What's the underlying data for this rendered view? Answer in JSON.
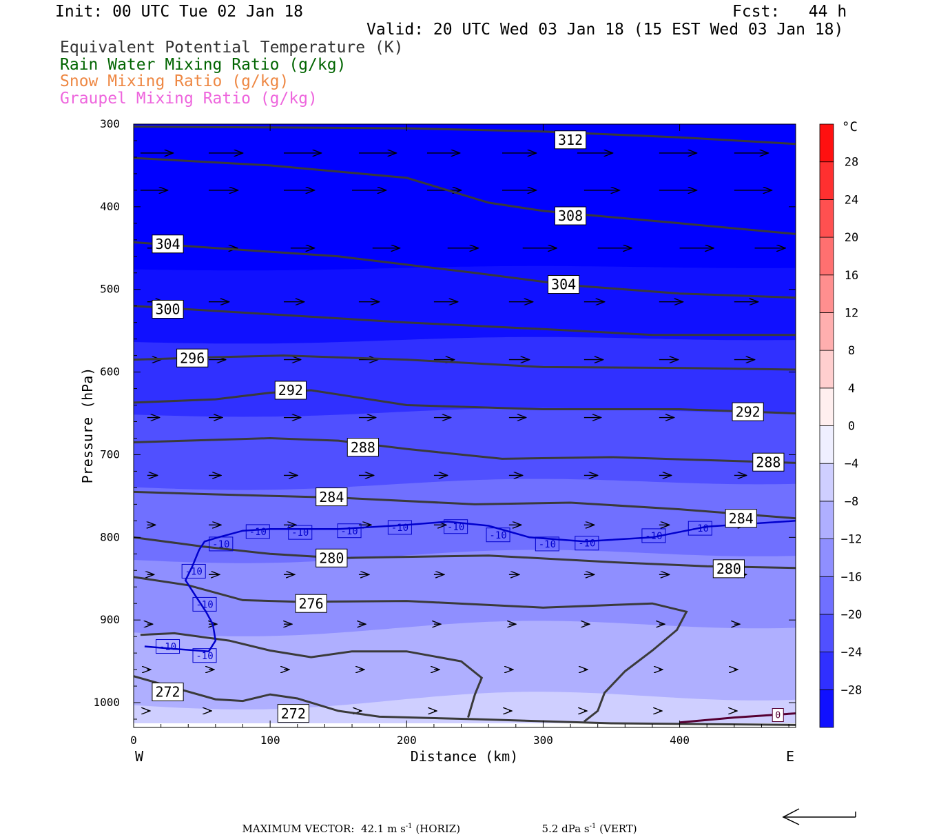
{
  "header": {
    "init": "Init: 00 UTC Tue 02 Jan 18",
    "fcst": "Fcst:   44 h",
    "valid": "Valid: 20 UTC Wed 03 Jan 18 (15 EST Wed 03 Jan 18)"
  },
  "legend": [
    {
      "text": "Equivalent Potential Temperature (K)",
      "color": "#333333"
    },
    {
      "text": "Rain Water Mixing Ratio (g/kg)",
      "color": "#006400"
    },
    {
      "text": "Snow Mixing Ratio (g/kg)",
      "color": "#ee8844"
    },
    {
      "text": "Graupel Mixing Ratio (g/kg)",
      "color": "#ee66dd"
    }
  ],
  "chart_data": {
    "type": "cross-section",
    "xlabel": "Distance (km)",
    "ylabel": "Pressure (hPa)",
    "xlim": [
      0,
      485
    ],
    "ylim": [
      1030,
      300
    ],
    "x_ticks": [
      0,
      100,
      200,
      300,
      400
    ],
    "y_ticks": [
      300,
      400,
      500,
      600,
      700,
      800,
      900,
      1000
    ],
    "x_end_labels": {
      "left": "W",
      "right": "E"
    },
    "temperature_fill": {
      "unit": "°C",
      "surface_temp": -1,
      "top_temp": -34,
      "top_pressure": 300,
      "colorbar_ticks": [
        28,
        24,
        20,
        16,
        12,
        8,
        4,
        0,
        -4,
        -8,
        -12,
        -16,
        -20,
        -24,
        -28
      ],
      "colorbar_range": [
        -32,
        32
      ],
      "interval": 4
    },
    "theta_e_contours": [
      {
        "value": 312,
        "points": [
          [
            0,
            303
          ],
          [
            100,
            304
          ],
          [
            200,
            305
          ],
          [
            300,
            309
          ],
          [
            400,
            316
          ],
          [
            485,
            324
          ]
        ],
        "labels": [
          [
            320,
            319
          ]
        ]
      },
      {
        "value": 308,
        "points": [
          [
            0,
            341
          ],
          [
            100,
            350
          ],
          [
            200,
            365
          ],
          [
            260,
            395
          ],
          [
            300,
            405
          ],
          [
            400,
            420
          ],
          [
            485,
            433
          ]
        ],
        "labels": [
          [
            320,
            411
          ]
        ]
      },
      {
        "value": 304,
        "points": [
          [
            0,
            443
          ],
          [
            60,
            450
          ],
          [
            150,
            460
          ],
          [
            250,
            480
          ],
          [
            320,
            495
          ],
          [
            400,
            505
          ],
          [
            485,
            510
          ]
        ],
        "labels": [
          [
            25,
            445
          ],
          [
            315,
            494
          ]
        ]
      },
      {
        "value": 300,
        "points": [
          [
            0,
            520
          ],
          [
            100,
            530
          ],
          [
            200,
            540
          ],
          [
            300,
            548
          ],
          [
            380,
            555
          ],
          [
            485,
            555
          ]
        ],
        "labels": [
          [
            25,
            524
          ]
        ]
      },
      {
        "value": 296,
        "points": [
          [
            0,
            585
          ],
          [
            60,
            582
          ],
          [
            110,
            580
          ],
          [
            200,
            585
          ],
          [
            300,
            594
          ],
          [
            400,
            595
          ],
          [
            485,
            597
          ]
        ],
        "labels": [
          [
            43,
            583
          ]
        ]
      },
      {
        "value": 292,
        "points": [
          [
            0,
            637
          ],
          [
            60,
            633
          ],
          [
            100,
            625
          ],
          [
            130,
            622
          ],
          [
            200,
            640
          ],
          [
            300,
            645
          ],
          [
            400,
            645
          ],
          [
            485,
            650
          ]
        ],
        "labels": [
          [
            115,
            622
          ],
          [
            450,
            648
          ]
        ]
      },
      {
        "value": 288,
        "points": [
          [
            0,
            685
          ],
          [
            60,
            682
          ],
          [
            100,
            680
          ],
          [
            150,
            683
          ],
          [
            200,
            693
          ],
          [
            270,
            705
          ],
          [
            350,
            703
          ],
          [
            485,
            710
          ]
        ],
        "labels": [
          [
            168,
            691
          ],
          [
            465,
            709
          ]
        ]
      },
      {
        "value": 284,
        "points": [
          [
            0,
            745
          ],
          [
            60,
            748
          ],
          [
            150,
            752
          ],
          [
            250,
            760
          ],
          [
            320,
            758
          ],
          [
            400,
            766
          ],
          [
            485,
            777
          ]
        ],
        "labels": [
          [
            145,
            751
          ],
          [
            445,
            777
          ]
        ]
      },
      {
        "value": 280,
        "points": [
          [
            0,
            800
          ],
          [
            50,
            811
          ],
          [
            100,
            820
          ],
          [
            150,
            825
          ],
          [
            260,
            822
          ],
          [
            350,
            830
          ],
          [
            420,
            835
          ],
          [
            485,
            837
          ]
        ],
        "labels": [
          [
            145,
            825
          ],
          [
            436,
            838
          ]
        ]
      },
      {
        "value": 276,
        "points": [
          [
            0,
            848
          ],
          [
            40,
            858
          ],
          [
            80,
            876
          ],
          [
            120,
            878
          ],
          [
            200,
            877
          ],
          [
            300,
            885
          ],
          [
            380,
            880
          ],
          [
            405,
            890
          ],
          [
            398,
            912
          ],
          [
            380,
            937
          ],
          [
            360,
            962
          ],
          [
            345,
            988
          ],
          [
            340,
            1010
          ],
          [
            330,
            1023
          ]
        ],
        "labels": [
          [
            130,
            880
          ]
        ]
      },
      {
        "value": 272,
        "points": [
          [
            0,
            968
          ],
          [
            30,
            982
          ],
          [
            60,
            996
          ],
          [
            80,
            998
          ],
          [
            100,
            990
          ],
          [
            120,
            995
          ],
          [
            150,
            1010
          ],
          [
            180,
            1017
          ],
          [
            250,
            1020
          ],
          [
            350,
            1025
          ],
          [
            485,
            1027
          ]
        ],
        "labels": [
          [
            25,
            987
          ],
          [
            117,
            1013
          ]
        ]
      }
    ],
    "inner_276_lobe": [
      [
        5,
        918
      ],
      [
        30,
        916
      ],
      [
        70,
        925
      ],
      [
        100,
        937
      ],
      [
        130,
        945
      ],
      [
        160,
        938
      ],
      [
        200,
        938
      ],
      [
        240,
        950
      ],
      [
        255,
        970
      ],
      [
        250,
        990
      ],
      [
        245,
        1018
      ]
    ],
    "temperature_contours": [
      {
        "value": -10,
        "color": "#0000cd",
        "points": [
          [
            8,
            932
          ],
          [
            30,
            935
          ],
          [
            55,
            938
          ],
          [
            60,
            925
          ],
          [
            58,
            905
          ],
          [
            53,
            890
          ],
          [
            45,
            870
          ],
          [
            38,
            852
          ],
          [
            43,
            835
          ],
          [
            48,
            815
          ],
          [
            52,
            805
          ],
          [
            62,
            800
          ],
          [
            80,
            792
          ],
          [
            100,
            790
          ],
          [
            150,
            790
          ],
          [
            200,
            785
          ],
          [
            230,
            781
          ],
          [
            260,
            786
          ],
          [
            290,
            800
          ],
          [
            330,
            805
          ],
          [
            380,
            800
          ],
          [
            420,
            787
          ],
          [
            485,
            780
          ]
        ],
        "labels": [
          [
            25,
            932
          ],
          [
            52,
            943
          ],
          [
            52,
            881
          ],
          [
            44,
            841
          ],
          [
            64,
            808
          ],
          [
            91,
            793
          ],
          [
            122,
            794
          ],
          [
            158,
            792
          ],
          [
            195,
            788
          ],
          [
            236,
            787
          ],
          [
            267,
            797
          ],
          [
            303,
            808
          ],
          [
            332,
            807
          ],
          [
            381,
            798
          ],
          [
            415,
            789
          ]
        ]
      }
    ],
    "graupel_contour": {
      "value": 0,
      "points": [
        [
          400,
          1024
        ],
        [
          440,
          1018
        ],
        [
          485,
          1013
        ]
      ],
      "labels": [
        [
          472,
          1015
        ]
      ]
    },
    "wind_vectors": [
      {
        "p": 335,
        "x": [
          5,
          55,
          110,
          165,
          215,
          270,
          325,
          385,
          440
        ],
        "dx": [
          48,
          50,
          55,
          55,
          48,
          50,
          52,
          55,
          50
        ]
      },
      {
        "p": 380,
        "x": [
          5,
          55,
          110,
          160,
          215,
          270,
          330,
          385,
          440
        ],
        "dx": [
          40,
          43,
          45,
          50,
          50,
          50,
          52,
          55,
          55
        ]
      },
      {
        "p": 450,
        "x": [
          10,
          60,
          115,
          175,
          230,
          285,
          340,
          400,
          455
        ],
        "dx": [
          25,
          32,
          35,
          40,
          45,
          50,
          50,
          50,
          45
        ]
      },
      {
        "p": 515,
        "x": [
          10,
          55,
          110,
          165,
          220,
          275,
          330,
          385,
          440
        ],
        "dx": [
          25,
          30,
          30,
          30,
          35,
          35,
          30,
          35,
          35
        ]
      },
      {
        "p": 585,
        "x": [
          10,
          55,
          110,
          165,
          220,
          275,
          330,
          385,
          440
        ],
        "dx": [
          20,
          25,
          25,
          28,
          30,
          30,
          28,
          28,
          30
        ]
      },
      {
        "p": 655,
        "x": [
          10,
          55,
          110,
          165,
          220,
          275,
          330,
          385,
          440
        ],
        "dx": [
          18,
          20,
          25,
          25,
          25,
          25,
          25,
          22,
          22
        ]
      },
      {
        "p": 725,
        "x": [
          10,
          55,
          110,
          165,
          220,
          275,
          330,
          385,
          440
        ],
        "dx": [
          15,
          18,
          20,
          22,
          20,
          20,
          20,
          18,
          18
        ]
      },
      {
        "p": 785,
        "x": [
          10,
          55,
          110,
          165,
          220,
          275,
          330,
          385,
          440
        ],
        "dx": [
          12,
          18,
          18,
          18,
          18,
          18,
          15,
          15,
          18
        ]
      },
      {
        "p": 845,
        "x": [
          10,
          55,
          110,
          165,
          220,
          275,
          330,
          385,
          440
        ],
        "dx": [
          10,
          16,
          16,
          15,
          15,
          15,
          15,
          15,
          18
        ]
      },
      {
        "p": 905,
        "x": [
          10,
          55,
          110,
          165,
          220,
          275,
          330,
          385,
          440
        ],
        "dx": [
          8,
          12,
          12,
          10,
          10,
          10,
          8,
          8,
          8
        ]
      },
      {
        "p": 960,
        "x": [
          10,
          55,
          110,
          165,
          220,
          275,
          330,
          385,
          440
        ],
        "dx": [
          5,
          8,
          8,
          8,
          8,
          6,
          5,
          5,
          5
        ]
      },
      {
        "p": 1010,
        "x": [
          10,
          55,
          110,
          165,
          220,
          275,
          330,
          385,
          440
        ],
        "dx": [
          4,
          4,
          4,
          4,
          4,
          4,
          4,
          4,
          4
        ]
      }
    ]
  },
  "footer": {
    "max_vector_label": "MAXIMUM VECTOR:",
    "horiz_value": "42.1 m s",
    "horiz_unit": "(HORIZ)",
    "vert_value": "5.2 dPa s",
    "vert_unit": "(VERT)",
    "exponent": "-1"
  }
}
